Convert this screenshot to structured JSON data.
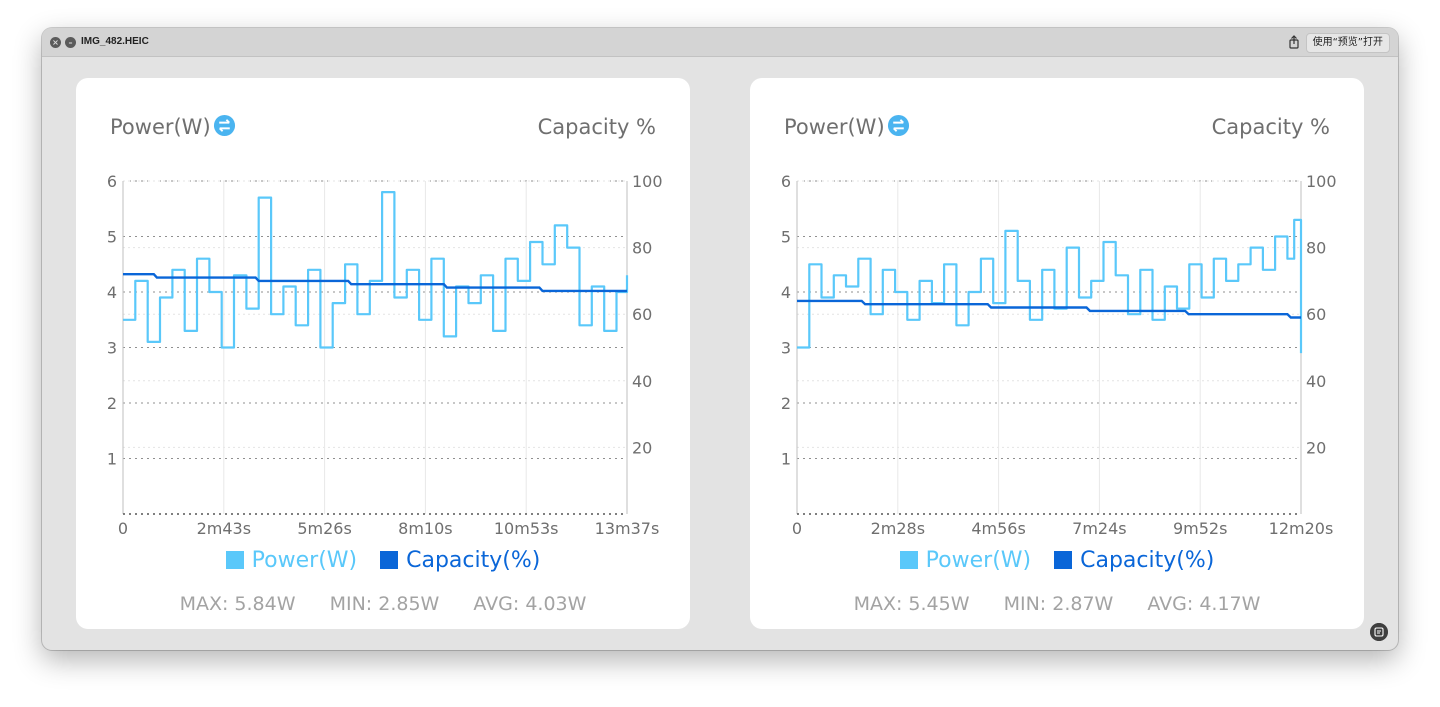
{
  "window": {
    "title": "IMG_482.HEIC",
    "open_with_label": "使用“预览”打开",
    "icons": [
      "close-icon",
      "minimize-icon",
      "share-icon",
      "live-text-icon"
    ]
  },
  "colors": {
    "power": "#5ac8fa",
    "capacity": "#0a66d8",
    "label": "#6f6f6f",
    "stats": "#a3a3a3"
  },
  "cards": [
    {
      "power_title": "Power(W)",
      "capacity_title": "Capacity %",
      "legend": {
        "power": "Power(W)",
        "capacity": "Capacity(%)"
      },
      "stats": {
        "max": "MAX: 5.84W",
        "min": "MIN: 2.85W",
        "avg": "AVG: 4.03W"
      }
    },
    {
      "power_title": "Power(W)",
      "capacity_title": "Capacity %",
      "legend": {
        "power": "Power(W)",
        "capacity": "Capacity(%)"
      },
      "stats": {
        "max": "MAX: 5.45W",
        "min": "MIN: 2.87W",
        "avg": "AVG: 4.17W"
      }
    }
  ],
  "chart_data": [
    {
      "type": "line",
      "x_tick_labels": [
        "0",
        "2m43s",
        "5m26s",
        "8m10s",
        "10m53s",
        "13m37s"
      ],
      "x_unit": "seconds",
      "xlim": [
        0,
        817
      ],
      "y_left": {
        "label": "Power(W)",
        "ticks": [
          1,
          2,
          3,
          4,
          5,
          6
        ],
        "ylim": [
          0,
          6
        ]
      },
      "y_right": {
        "label": "Capacity %",
        "ticks": [
          20,
          40,
          60,
          80,
          100
        ],
        "ylim": [
          0,
          100
        ]
      },
      "grid": true,
      "legend_position": "bottom",
      "series": [
        {
          "name": "Power(W)",
          "axis": "left",
          "x": [
            0,
            20,
            40,
            60,
            80,
            100,
            120,
            140,
            160,
            180,
            200,
            220,
            240,
            260,
            280,
            300,
            320,
            340,
            360,
            380,
            400,
            420,
            440,
            460,
            480,
            500,
            520,
            540,
            560,
            580,
            600,
            620,
            640,
            660,
            680,
            700,
            720,
            740,
            760,
            780,
            800,
            817
          ],
          "values": [
            3.5,
            4.2,
            3.1,
            3.9,
            4.4,
            3.3,
            4.6,
            4.0,
            3.0,
            4.3,
            3.7,
            5.7,
            3.6,
            4.1,
            3.4,
            4.4,
            3.0,
            3.8,
            4.5,
            3.6,
            4.2,
            5.8,
            3.9,
            4.4,
            3.5,
            4.6,
            3.2,
            4.1,
            3.8,
            4.3,
            3.3,
            4.6,
            4.2,
            4.9,
            4.5,
            5.2,
            4.8,
            3.4,
            4.1,
            3.3,
            4.0,
            4.3
          ]
        },
        {
          "name": "Capacity(%)",
          "axis": "right",
          "x": [
            0,
            50,
            55,
            215,
            220,
            365,
            370,
            520,
            525,
            675,
            680,
            817
          ],
          "values": [
            72,
            72,
            71,
            71,
            70,
            70,
            69,
            69,
            68,
            68,
            67,
            67
          ]
        }
      ]
    },
    {
      "type": "line",
      "x_tick_labels": [
        "0",
        "2m28s",
        "4m56s",
        "7m24s",
        "9m52s",
        "12m20s"
      ],
      "x_unit": "seconds",
      "xlim": [
        0,
        740
      ],
      "y_left": {
        "label": "Power(W)",
        "ticks": [
          1,
          2,
          3,
          4,
          5,
          6
        ],
        "ylim": [
          0,
          6
        ]
      },
      "y_right": {
        "label": "Capacity %",
        "ticks": [
          20,
          40,
          60,
          80,
          100
        ],
        "ylim": [
          0,
          100
        ]
      },
      "grid": true,
      "legend_position": "bottom",
      "series": [
        {
          "name": "Power(W)",
          "axis": "left",
          "x": [
            0,
            18,
            36,
            54,
            72,
            90,
            108,
            126,
            144,
            162,
            180,
            198,
            216,
            234,
            252,
            270,
            288,
            306,
            324,
            342,
            360,
            378,
            396,
            414,
            432,
            450,
            468,
            486,
            504,
            522,
            540,
            558,
            576,
            594,
            612,
            630,
            648,
            666,
            684,
            702,
            720,
            730,
            740
          ],
          "values": [
            3.0,
            4.5,
            3.9,
            4.3,
            4.1,
            4.6,
            3.6,
            4.4,
            4.0,
            3.5,
            4.2,
            3.8,
            4.5,
            3.4,
            4.0,
            4.6,
            3.8,
            5.1,
            4.2,
            3.5,
            4.4,
            3.7,
            4.8,
            3.9,
            4.2,
            4.9,
            4.3,
            3.6,
            4.4,
            3.5,
            4.1,
            3.7,
            4.5,
            3.9,
            4.6,
            4.2,
            4.5,
            4.8,
            4.4,
            5.0,
            4.6,
            5.3,
            2.9
          ]
        },
        {
          "name": "Capacity(%)",
          "axis": "right",
          "x": [
            0,
            95,
            100,
            280,
            285,
            425,
            430,
            570,
            575,
            720,
            725,
            740
          ],
          "values": [
            64,
            64,
            63,
            63,
            62,
            62,
            61,
            61,
            60,
            60,
            59,
            59
          ]
        }
      ]
    }
  ]
}
